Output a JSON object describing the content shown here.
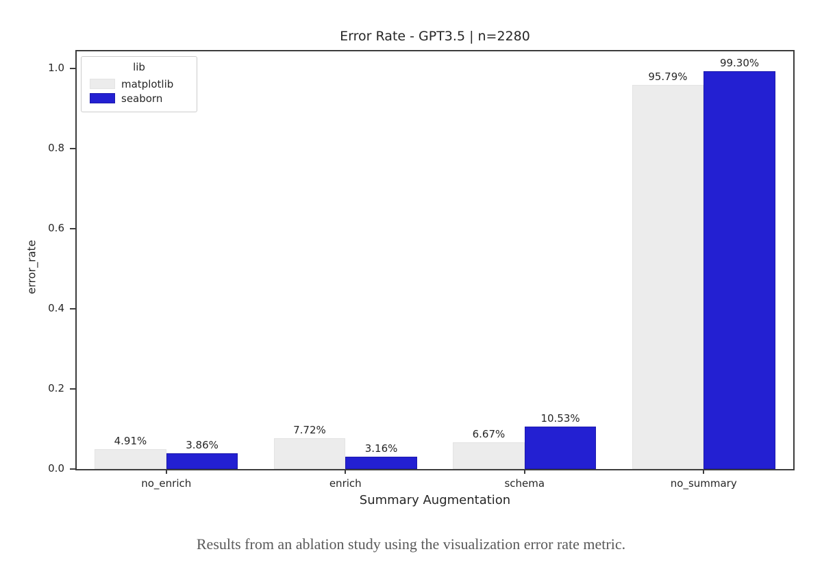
{
  "caption": "Results from an ablation study using the visualization error rate metric.",
  "chart_data": {
    "type": "bar",
    "title": "Error Rate - GPT3.5 | n=2280",
    "xlabel": "Summary Augmentation",
    "ylabel": "error_rate",
    "categories": [
      "no_enrich",
      "enrich",
      "schema",
      "no_summary"
    ],
    "series": [
      {
        "name": "matplotlib",
        "color": "#ececec",
        "edge_color": "#e3e3e3",
        "values": [
          0.0491,
          0.0772,
          0.0667,
          0.9579
        ],
        "labels": [
          "4.91%",
          "7.72%",
          "6.67%",
          "95.79%"
        ]
      },
      {
        "name": "seaborn",
        "color": "#2320d2",
        "edge_color": "#1b19ad",
        "values": [
          0.0386,
          0.0316,
          0.1053,
          0.993
        ],
        "labels": [
          "3.86%",
          "3.16%",
          "10.53%",
          "99.30%"
        ]
      }
    ],
    "ylim": [
      0,
      1.042
    ],
    "yticks": [
      "0.0",
      "0.2",
      "0.4",
      "0.6",
      "0.8",
      "1.0"
    ],
    "legend_title": "lib",
    "legend_position": "upper left",
    "grid": false
  }
}
